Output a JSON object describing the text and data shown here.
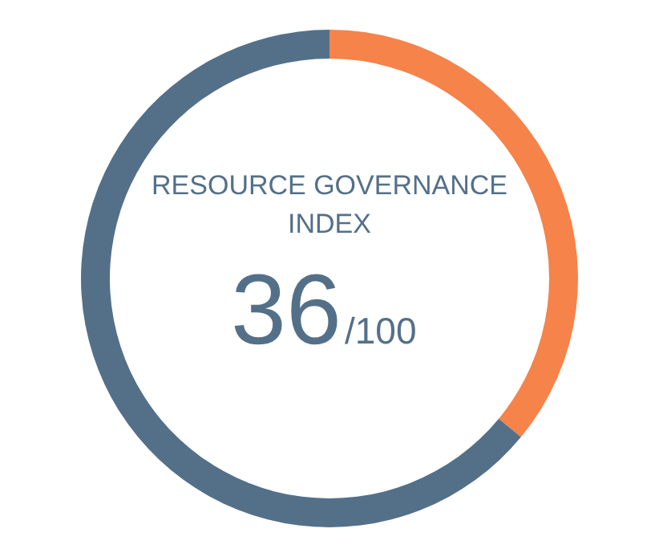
{
  "chart_data": {
    "type": "donut",
    "title": "RESOURCE GOVERNANCE INDEX",
    "categories": [
      null,
      null
    ],
    "values": [
      36,
      64
    ],
    "colors": [
      "#f5834a",
      "#547089"
    ],
    "annotations": [
      "36/100"
    ]
  }
}
